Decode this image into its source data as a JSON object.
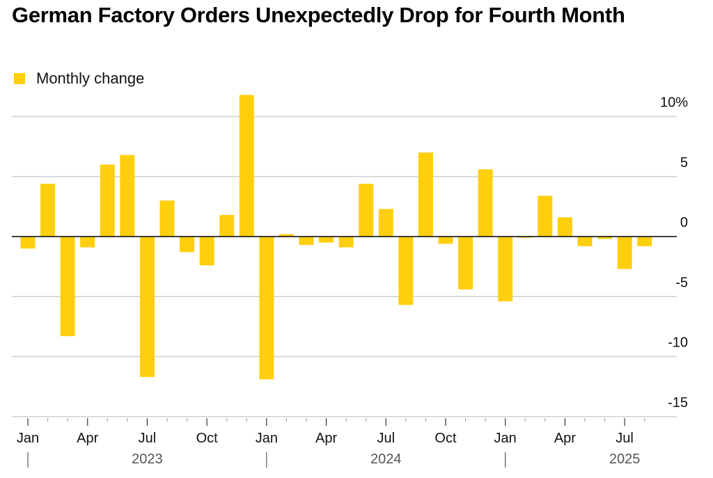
{
  "chart_data": {
    "type": "bar",
    "title": "German Factory Orders Unexpectedly Drop for Fourth Month",
    "legend": [
      {
        "name": "Monthly change",
        "color": "#FFCF0D"
      }
    ],
    "legend_placement": "top-left",
    "categories": [
      "Jan 2023",
      "Feb 2023",
      "Mar 2023",
      "Apr 2023",
      "May 2023",
      "Jun 2023",
      "Jul 2023",
      "Aug 2023",
      "Sep 2023",
      "Oct 2023",
      "Nov 2023",
      "Dec 2023",
      "Jan 2024",
      "Feb 2024",
      "Mar 2024",
      "Apr 2024",
      "May 2024",
      "Jun 2024",
      "Jul 2024",
      "Aug 2024",
      "Sep 2024",
      "Oct 2024",
      "Nov 2024",
      "Dec 2024",
      "Jan 2025",
      "Feb 2025",
      "Mar 2025",
      "Apr 2025",
      "May 2025",
      "Jun 2025",
      "Jul 2025",
      "Aug 2025"
    ],
    "series": [
      {
        "name": "Monthly change",
        "values": [
          -1.0,
          4.4,
          -8.3,
          -0.9,
          6.0,
          6.8,
          -11.7,
          3.0,
          -1.3,
          -2.4,
          1.8,
          11.8,
          -11.9,
          0.2,
          -0.7,
          -0.5,
          -0.9,
          4.4,
          2.3,
          -5.7,
          7.0,
          -0.6,
          -4.4,
          5.6,
          -5.4,
          -0.1,
          3.4,
          1.6,
          -0.8,
          -0.2,
          -2.7,
          -0.8
        ]
      }
    ],
    "ylim": [
      -15,
      12
    ],
    "yticks": [
      10,
      5,
      0,
      -5,
      -10,
      -15
    ],
    "ytick_labels": [
      "10%",
      "5",
      "0",
      "-5",
      "-10",
      "-15"
    ],
    "yaxis_position": "right",
    "grid": true,
    "xtick_labels": [
      "Jan",
      "Apr",
      "Jul",
      "Oct",
      "Jan",
      "Apr",
      "Jul",
      "Oct",
      "Jan",
      "Apr",
      "Jul"
    ],
    "year_labels": [
      "2023",
      "2024",
      "2025"
    ],
    "bar_color": "#FFCF0D"
  }
}
